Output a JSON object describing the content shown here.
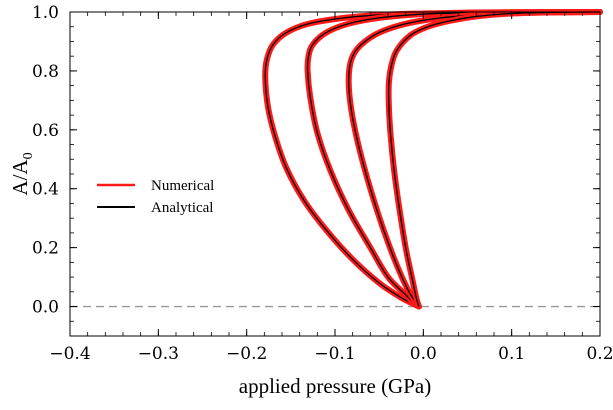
{
  "chart_data": {
    "type": "line",
    "xlabel": "applied pressure (GPa)",
    "ylabel": "A/A",
    "ylabel_sub": "0",
    "xlim": [
      -0.4,
      0.2
    ],
    "ylim": [
      -0.1,
      1.0
    ],
    "x_ticks": [
      {
        "value": -0.4,
        "label": "−0.4"
      },
      {
        "value": -0.3,
        "label": "−0.3"
      },
      {
        "value": -0.2,
        "label": "−0.2"
      },
      {
        "value": -0.1,
        "label": "−0.1"
      },
      {
        "value": 0.0,
        "label": "0.0"
      },
      {
        "value": 0.1,
        "label": "0.1"
      },
      {
        "value": 0.2,
        "label": "0.2"
      }
    ],
    "y_ticks": [
      {
        "value": 0.0,
        "label": "0.0"
      },
      {
        "value": 0.2,
        "label": "0.2"
      },
      {
        "value": 0.4,
        "label": "0.4"
      },
      {
        "value": 0.6,
        "label": "0.6"
      },
      {
        "value": 0.8,
        "label": "0.8"
      },
      {
        "value": 1.0,
        "label": "1.0"
      }
    ],
    "reference_line": {
      "y": 0.0,
      "style": "dashed",
      "color": "#999999"
    },
    "legend": {
      "position": "middle-left",
      "entries": [
        {
          "label": "Numerical",
          "color": "#ff1a1a"
        },
        {
          "label": "Analytical",
          "color": "#000000"
        }
      ]
    },
    "curves": [
      {
        "x": [
          -0.005,
          -0.012,
          -0.025,
          -0.05,
          -0.08,
          -0.11,
          -0.135,
          -0.155,
          -0.168,
          -0.176,
          -0.179,
          -0.177,
          -0.17,
          -0.155,
          -0.13,
          -0.09,
          -0.05,
          0.0,
          0.05,
          0.1,
          0.15,
          0.2
        ],
        "y": [
          0.0,
          0.01,
          0.03,
          0.08,
          0.16,
          0.26,
          0.36,
          0.47,
          0.58,
          0.68,
          0.78,
          0.84,
          0.89,
          0.93,
          0.96,
          0.98,
          0.99,
          0.995,
          0.998,
          0.999,
          0.9995,
          1.0
        ]
      },
      {
        "x": [
          -0.005,
          -0.01,
          -0.02,
          -0.04,
          -0.06,
          -0.085,
          -0.105,
          -0.12,
          -0.128,
          -0.131,
          -0.13,
          -0.125,
          -0.11,
          -0.085,
          -0.05,
          0.0,
          0.05,
          0.1,
          0.15,
          0.2
        ],
        "y": [
          0.0,
          0.01,
          0.04,
          0.1,
          0.2,
          0.33,
          0.46,
          0.59,
          0.71,
          0.8,
          0.85,
          0.89,
          0.93,
          0.96,
          0.98,
          0.993,
          0.997,
          0.999,
          0.9995,
          1.0
        ]
      },
      {
        "x": [
          -0.005,
          -0.01,
          -0.018,
          -0.03,
          -0.045,
          -0.06,
          -0.072,
          -0.08,
          -0.084,
          -0.084,
          -0.08,
          -0.07,
          -0.05,
          -0.02,
          0.02,
          0.06,
          0.1,
          0.15,
          0.2
        ],
        "y": [
          0.0,
          0.02,
          0.06,
          0.14,
          0.26,
          0.4,
          0.53,
          0.64,
          0.73,
          0.8,
          0.85,
          0.89,
          0.93,
          0.96,
          0.98,
          0.99,
          0.996,
          0.999,
          1.0
        ]
      },
      {
        "x": [
          -0.005,
          -0.008,
          -0.013,
          -0.02,
          -0.027,
          -0.033,
          -0.037,
          -0.039,
          -0.039,
          -0.036,
          -0.03,
          -0.015,
          0.005,
          0.03,
          0.06,
          0.1,
          0.15,
          0.2
        ],
        "y": [
          0.0,
          0.03,
          0.1,
          0.2,
          0.33,
          0.46,
          0.58,
          0.68,
          0.76,
          0.82,
          0.87,
          0.92,
          0.95,
          0.97,
          0.985,
          0.995,
          0.999,
          1.0
        ]
      }
    ]
  }
}
